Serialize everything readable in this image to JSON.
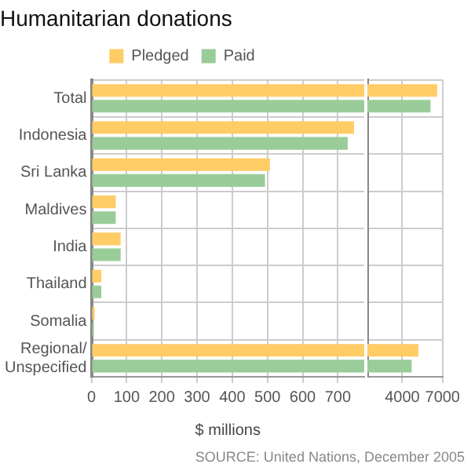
{
  "chart_data": [
    {
      "type": "bar",
      "orientation": "horizontal",
      "title": "Humanitarian donations",
      "xlabel": "$ millions",
      "legend": "top",
      "grid": true,
      "categories": [
        "Total",
        "Indonesia",
        "Sri Lanka",
        "Maldives",
        "India",
        "Thailand",
        "Somalia",
        "Regional/\nUnspecified"
      ],
      "series": [
        {
          "name": "Pledged",
          "color": "#ffcc66",
          "values": [
            775,
            746,
            507,
            69,
            83,
            28,
            9,
            775
          ]
        },
        {
          "name": "Paid",
          "color": "#99cc99",
          "values": [
            775,
            728,
            493,
            69,
            83,
            28,
            7,
            775
          ]
        }
      ],
      "xlim": [
        0,
        775
      ],
      "xticks": [
        0,
        100,
        200,
        300,
        400,
        500,
        600,
        700
      ],
      "annotations": [
        "SOURCE: United Nations, December 2005"
      ]
    },
    {
      "type": "bar",
      "orientation": "horizontal",
      "grid": true,
      "tick_labels": "x",
      "categories": [
        null,
        null,
        null,
        null,
        null,
        null,
        null,
        null
      ],
      "series": [
        {
          "color": "#ffcc66",
          "values": [
            6600,
            null,
            null,
            null,
            null,
            null,
            null,
            5200
          ]
        },
        {
          "color": "#99cc99",
          "values": [
            6100,
            null,
            null,
            null,
            null,
            null,
            null,
            4700
          ]
        }
      ],
      "xlim": [
        1400,
        7000
      ],
      "xticks": [
        4000,
        7000
      ]
    }
  ]
}
